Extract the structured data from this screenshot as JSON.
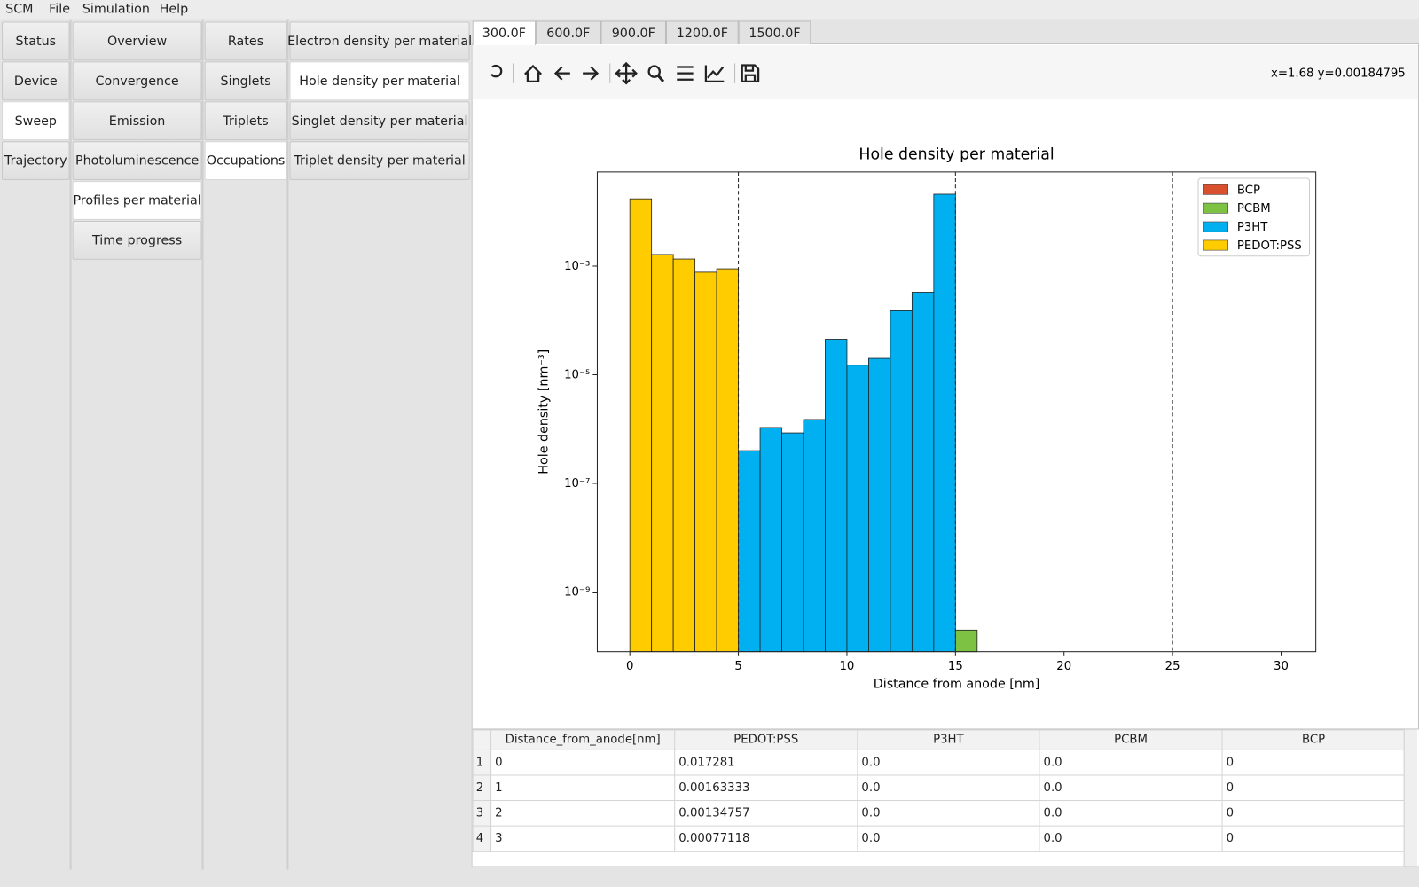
{
  "menu": [
    "SCM",
    "File",
    "Simulation",
    "Help"
  ],
  "nav": [
    {
      "items": [
        "Status",
        "Device",
        "Sweep",
        "Trajectory"
      ],
      "selected": 2
    },
    {
      "items": [
        "Overview",
        "Convergence",
        "Emission",
        "Photoluminescence",
        "Profiles per material",
        "Time progress"
      ],
      "selected": 4
    },
    {
      "items": [
        "Rates",
        "Singlets",
        "Triplets",
        "Occupations"
      ],
      "selected": 3
    },
    {
      "items": [
        "Electron density per material",
        "Hole density per material",
        "Singlet density per material",
        "Triplet density per material"
      ],
      "selected": 1
    }
  ],
  "temperature_tabs": {
    "items": [
      "300.0F",
      "600.0F",
      "900.0F",
      "1200.0F",
      "1500.0F"
    ],
    "selected": 0
  },
  "cursor_readout": "x=1.68 y=0.00184795",
  "chart_data": {
    "type": "histogram",
    "title": "Hole density per material",
    "x_label": "Distance from anode [nm]",
    "y_label": "Hole density [nm⁻³]",
    "bins": [
      0,
      1,
      2,
      3,
      4,
      5,
      6,
      7,
      8,
      9,
      10,
      11,
      12,
      13,
      14,
      15,
      16
    ],
    "series": [
      {
        "name": "BCP",
        "color": "#d9502e",
        "values": [
          null,
          null,
          null,
          null,
          null,
          null,
          null,
          null,
          null,
          null,
          null,
          null,
          null,
          null,
          null,
          null
        ]
      },
      {
        "name": "PCBM",
        "color": "#7dc242",
        "values": [
          null,
          null,
          null,
          null,
          null,
          null,
          null,
          null,
          null,
          null,
          null,
          null,
          null,
          null,
          null,
          2e-10
        ]
      },
      {
        "name": "P3HT",
        "color": "#00b0f0",
        "values": [
          null,
          null,
          null,
          null,
          null,
          4e-07,
          1.07e-06,
          8.5e-07,
          1.5e-06,
          4.5e-05,
          1.5e-05,
          2e-05,
          0.00015,
          0.00033,
          0.021,
          null
        ]
      },
      {
        "name": "PEDOT:PSS",
        "color": "#ffcc00",
        "values": [
          0.017281,
          0.00163333,
          0.00134757,
          0.00077118,
          0.00089,
          null,
          null,
          null,
          null,
          null,
          null,
          null,
          null,
          null,
          null,
          null
        ]
      }
    ],
    "xlim": [
      -1.5,
      31.6
    ],
    "xticks": [
      0,
      5,
      10,
      15,
      20,
      25,
      30
    ],
    "ylim": [
      8e-11,
      0.054
    ],
    "y_scale": "log",
    "yticks": [
      {
        "value": 1e-09,
        "label": "10⁻⁹"
      },
      {
        "value": 1e-07,
        "label": "10⁻⁷"
      },
      {
        "value": 1e-05,
        "label": "10⁻⁵"
      },
      {
        "value": 0.001,
        "label": "10⁻³"
      }
    ],
    "vlines": [
      5,
      15,
      25
    ],
    "legend": "upper right"
  },
  "table": {
    "columns": [
      "Distance_from_anode[nm]",
      "PEDOT:PSS",
      "P3HT",
      "PCBM",
      "BCP"
    ],
    "row_numbers": [
      "1",
      "2",
      "3",
      "4"
    ],
    "rows": [
      [
        "0",
        "0.017281",
        "0.0",
        "0.0",
        "0"
      ],
      [
        "1",
        "0.00163333",
        "0.0",
        "0.0",
        "0"
      ],
      [
        "2",
        "0.00134757",
        "0.0",
        "0.0",
        "0"
      ],
      [
        "3",
        "0.00077118",
        "0.0",
        "0.0",
        "0"
      ]
    ]
  }
}
